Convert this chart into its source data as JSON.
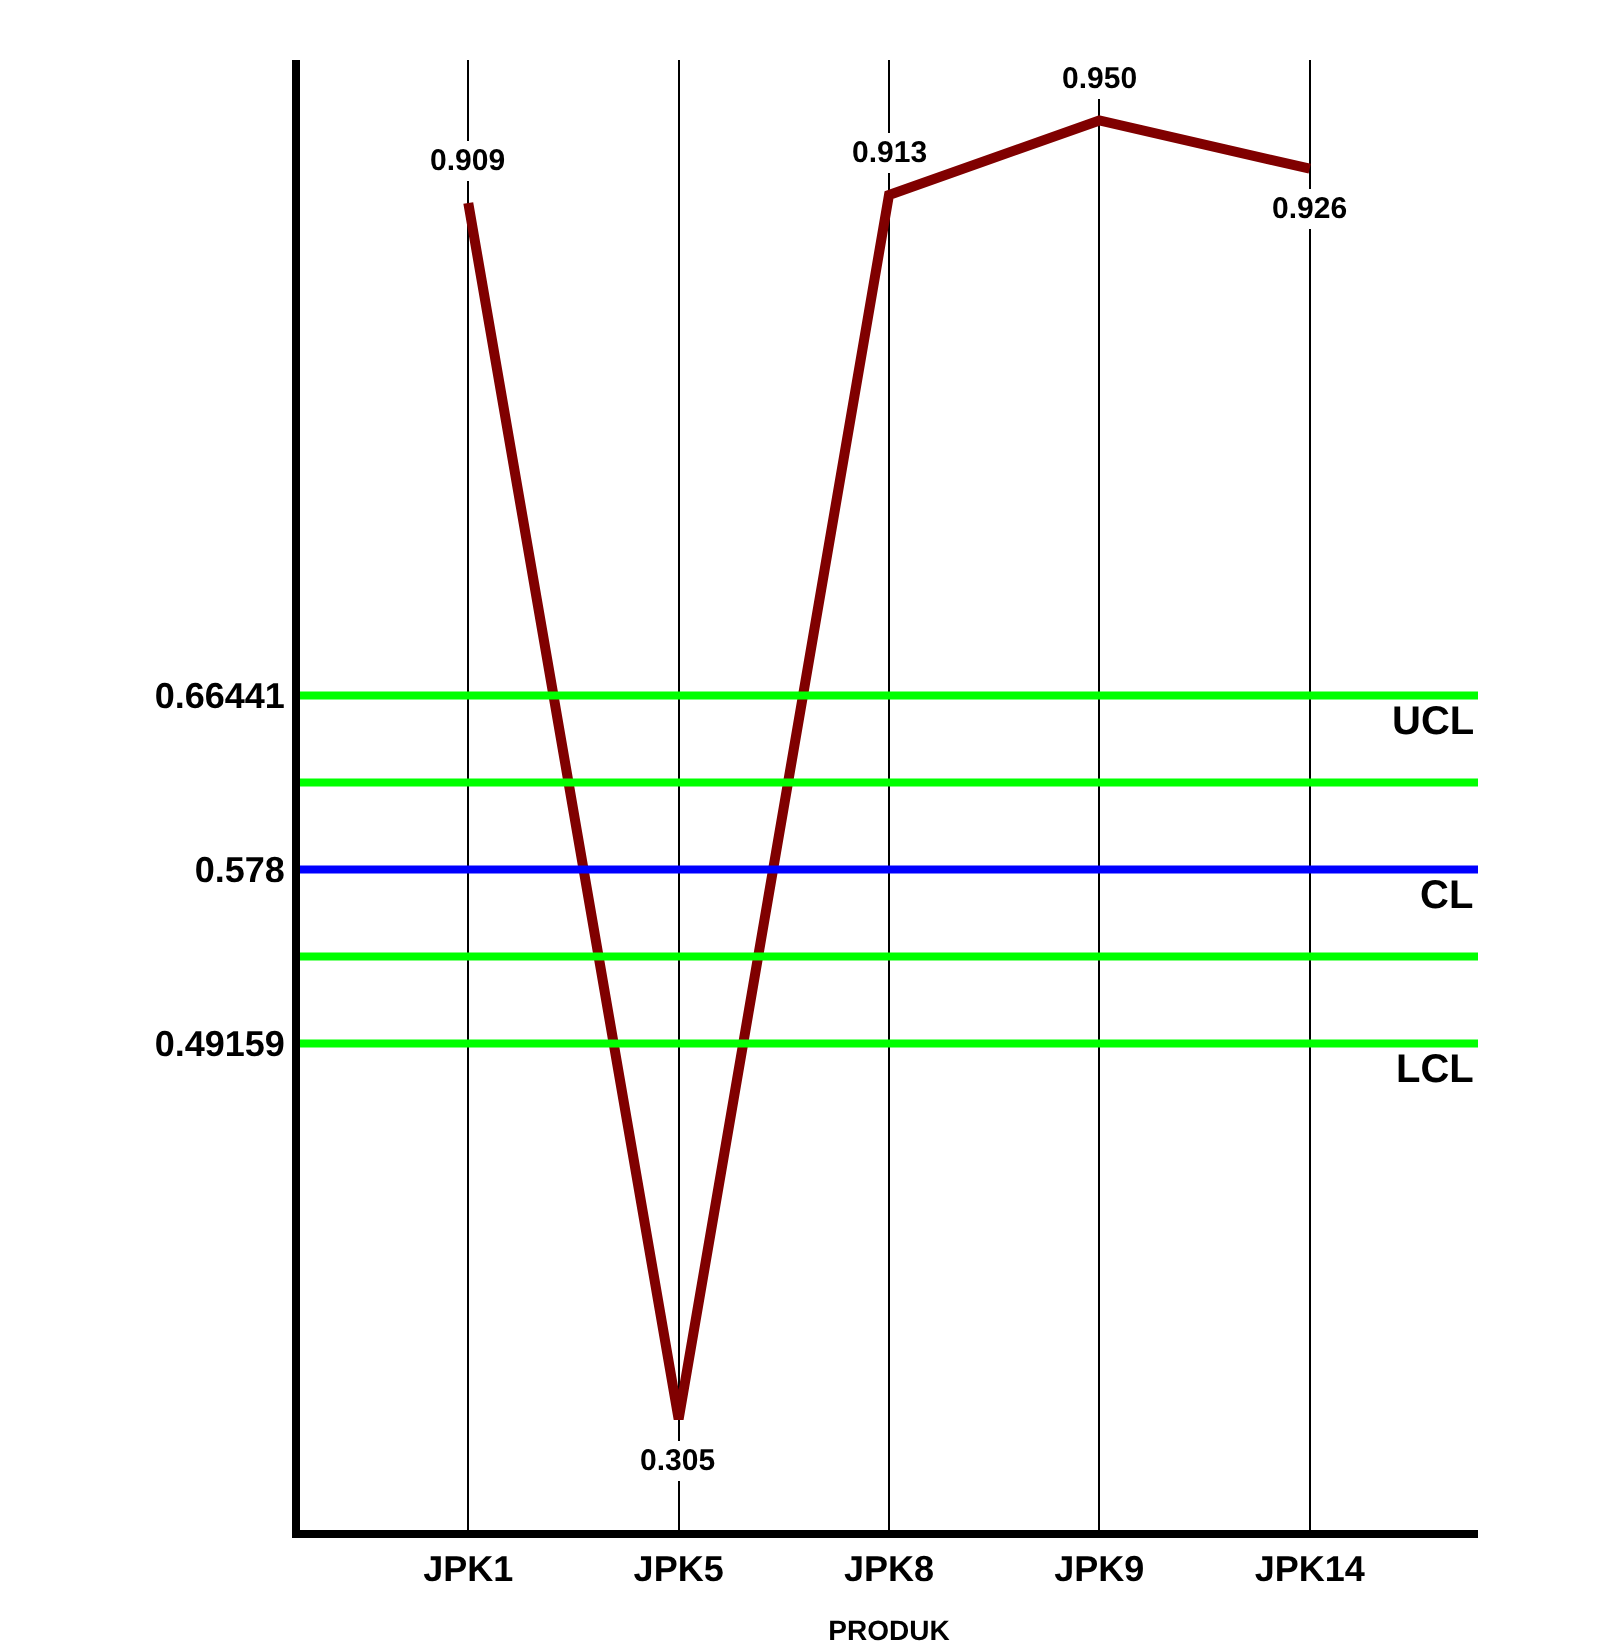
{
  "chart_data": {
    "type": "line",
    "xlabel": "PRODUK",
    "categories": [
      "JPK1",
      "JPK5",
      "JPK8",
      "JPK9",
      "JPK14"
    ],
    "series": [
      {
        "color": "#800000",
        "values": [
          0.909,
          0.305,
          0.913,
          0.95,
          0.926
        ],
        "value_labels": [
          "0.909",
          "0.305",
          "0.913",
          "0.950",
          "0.926"
        ]
      }
    ],
    "ylim": [
      0.25,
      0.98
    ],
    "yticks": [
      0.49159,
      0.578,
      0.66441
    ],
    "grid": "x",
    "marker": "none",
    "line_style": "solid",
    "ref_lines": [
      {
        "axis": "y",
        "value": 0.66441,
        "label": "UCL",
        "color": "#00ff00"
      },
      {
        "axis": "y",
        "value": 0.6212,
        "label": null,
        "color": "#00ff00"
      },
      {
        "axis": "y",
        "value": 0.578,
        "label": "CL",
        "color": "#0000ff"
      },
      {
        "axis": "y",
        "value": 0.5348,
        "label": null,
        "color": "#00ff00"
      },
      {
        "axis": "y",
        "value": 0.49159,
        "label": "LCL",
        "color": "#00ff00"
      }
    ]
  }
}
